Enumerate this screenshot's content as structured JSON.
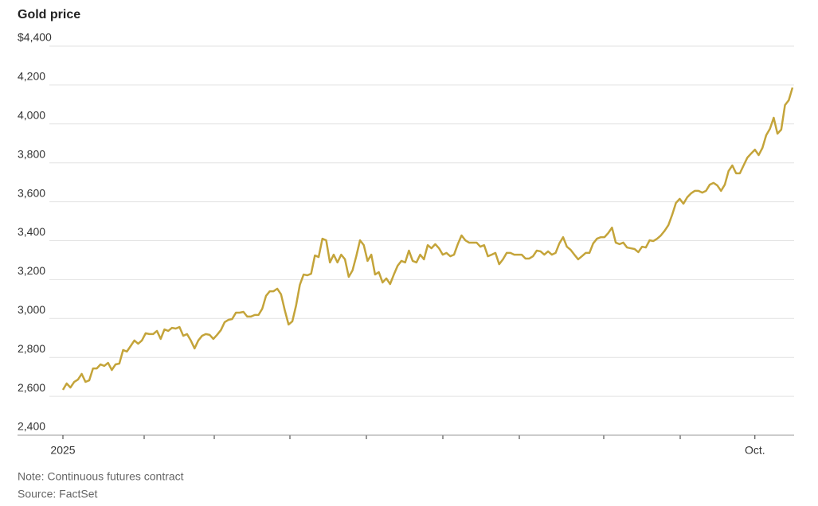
{
  "chart_data": {
    "type": "line",
    "title": "Gold price",
    "notes": [
      "Note: Continuous futures contract",
      "Source: FactSet"
    ],
    "categories": [
      "2025",
      null,
      null,
      null,
      null,
      null,
      null,
      null,
      null,
      null,
      null,
      null,
      null,
      null,
      null,
      null,
      null,
      null,
      null,
      null,
      null,
      null,
      null,
      null,
      null,
      null,
      null,
      null,
      null,
      null,
      null,
      null,
      null,
      null,
      null,
      null,
      null,
      null,
      null,
      null,
      null,
      null,
      null,
      null,
      null,
      null,
      null,
      null,
      null,
      null,
      null,
      null,
      null,
      null,
      null,
      null,
      null,
      null,
      null,
      null,
      null,
      null,
      null,
      null,
      null,
      null,
      null,
      null,
      null,
      null,
      null,
      null,
      null,
      null,
      null,
      null,
      null,
      null,
      null,
      null,
      null,
      null,
      null,
      null,
      null,
      null,
      null,
      null,
      null,
      null,
      null,
      null,
      null,
      null,
      null,
      null,
      null,
      null,
      null,
      null,
      null,
      null,
      null,
      null,
      null,
      null,
      null,
      null,
      null,
      null,
      null,
      null,
      null,
      null,
      null,
      null,
      null,
      null,
      null,
      null,
      null,
      null,
      null,
      null,
      null,
      null,
      null,
      null,
      null,
      null,
      null,
      null,
      null,
      null,
      null,
      null,
      null,
      null,
      null,
      null,
      null,
      null,
      null,
      null,
      null,
      null,
      null,
      null,
      null,
      null,
      null,
      null,
      null,
      null,
      null,
      null,
      null,
      null,
      null,
      null,
      null,
      null,
      null,
      null,
      null,
      null,
      null,
      null,
      null,
      null,
      null,
      null,
      null,
      null,
      null,
      null,
      null,
      null,
      null,
      null,
      null,
      null,
      null,
      null,
      "Oct.",
      null,
      null,
      null,
      null,
      null,
      null,
      null,
      null,
      null,
      null
    ],
    "series": [
      {
        "name": "Gold price",
        "color": "#c4a43a",
        "values": [
          2633,
          2666,
          2645,
          2674,
          2686,
          2715,
          2674,
          2682,
          2743,
          2743,
          2764,
          2756,
          2772,
          2735,
          2764,
          2768,
          2838,
          2830,
          2858,
          2887,
          2870,
          2887,
          2924,
          2920,
          2920,
          2936,
          2895,
          2944,
          2936,
          2952,
          2948,
          2956,
          2911,
          2920,
          2887,
          2846,
          2887,
          2911,
          2920,
          2916,
          2895,
          2916,
          2940,
          2981,
          2993,
          2997,
          3030,
          3030,
          3034,
          3010,
          3010,
          3018,
          3018,
          3050,
          3116,
          3140,
          3140,
          3153,
          3124,
          3042,
          2969,
          2985,
          3067,
          3173,
          3226,
          3222,
          3230,
          3324,
          3316,
          3410,
          3402,
          3288,
          3328,
          3288,
          3328,
          3304,
          3214,
          3247,
          3320,
          3402,
          3377,
          3296,
          3328,
          3226,
          3238,
          3185,
          3206,
          3177,
          3226,
          3271,
          3296,
          3288,
          3349,
          3296,
          3288,
          3328,
          3304,
          3377,
          3361,
          3382,
          3361,
          3328,
          3337,
          3320,
          3328,
          3382,
          3427,
          3402,
          3390,
          3390,
          3390,
          3369,
          3377,
          3320,
          3328,
          3337,
          3279,
          3304,
          3337,
          3337,
          3328,
          3328,
          3328,
          3308,
          3308,
          3320,
          3349,
          3345,
          3328,
          3345,
          3328,
          3337,
          3386,
          3418,
          3369,
          3353,
          3328,
          3304,
          3320,
          3337,
          3337,
          3386,
          3410,
          3418,
          3418,
          3439,
          3467,
          3390,
          3382,
          3390,
          3365,
          3361,
          3357,
          3341,
          3369,
          3365,
          3402,
          3398,
          3410,
          3427,
          3451,
          3480,
          3533,
          3594,
          3615,
          3590,
          3623,
          3643,
          3656,
          3656,
          3647,
          3656,
          3688,
          3697,
          3684,
          3656,
          3688,
          3758,
          3787,
          3746,
          3746,
          3787,
          3827,
          3848,
          3868,
          3840,
          3877,
          3942,
          3975,
          4032,
          3950,
          3971,
          4097,
          4122,
          4187
        ]
      }
    ],
    "ylim": [
      2400,
      4400
    ],
    "yticks": [
      {
        "value": 2400,
        "label": "2,400"
      },
      {
        "value": 2600,
        "label": "2,600"
      },
      {
        "value": 2800,
        "label": "2,800"
      },
      {
        "value": 3000,
        "label": "3,000"
      },
      {
        "value": 3200,
        "label": "3,200"
      },
      {
        "value": 3400,
        "label": "3,400"
      },
      {
        "value": 3600,
        "label": "3,600"
      },
      {
        "value": 3800,
        "label": "3,800"
      },
      {
        "value": 4000,
        "label": "4,000"
      },
      {
        "value": 4200,
        "label": "4,200"
      },
      {
        "value": 4400,
        "label": "$4,400"
      }
    ],
    "grid": true
  }
}
